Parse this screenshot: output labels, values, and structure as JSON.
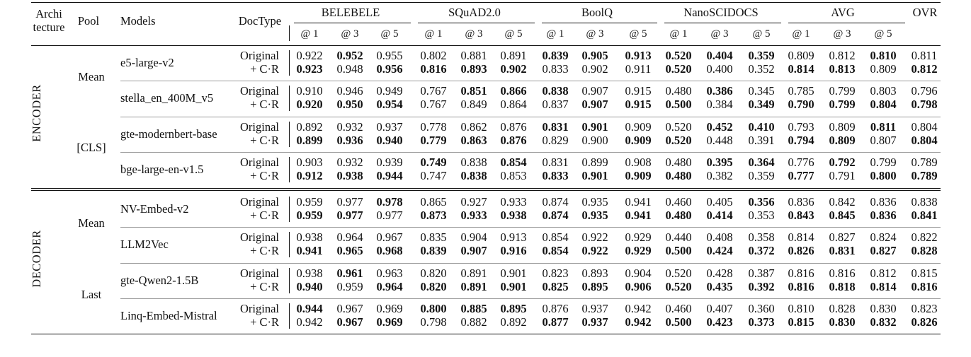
{
  "header": {
    "arch_line1": "Archi",
    "arch_line2": "tecture",
    "pool": "Pool",
    "models": "Models",
    "doctype": "DocType",
    "groups": [
      "BELEBELE",
      "SQuAD2.0",
      "BoolQ",
      "NanoSCIDOCS",
      "AVG"
    ],
    "ovr": "OVR",
    "at_labels": [
      "@ 1",
      "@ 3",
      "@ 5"
    ]
  },
  "doctypes": {
    "original": "Original",
    "cr": "+ C·R"
  },
  "sections": [
    {
      "arch": "ENCODER",
      "pools": [
        {
          "pool": "Mean",
          "models": [
            {
              "name": "e5-large-v2",
              "rows": [
                {
                  "values": [
                    "0.922",
                    "0.952",
                    "0.955",
                    "0.802",
                    "0.881",
                    "0.891",
                    "0.839",
                    "0.905",
                    "0.913",
                    "0.520",
                    "0.404",
                    "0.359",
                    "0.809",
                    "0.812",
                    "0.810",
                    "0.811"
                  ],
                  "bold": [
                    false,
                    true,
                    false,
                    false,
                    false,
                    false,
                    true,
                    true,
                    true,
                    true,
                    true,
                    true,
                    false,
                    false,
                    true,
                    false
                  ]
                },
                {
                  "values": [
                    "0.923",
                    "0.948",
                    "0.956",
                    "0.816",
                    "0.893",
                    "0.902",
                    "0.833",
                    "0.902",
                    "0.911",
                    "0.520",
                    "0.400",
                    "0.352",
                    "0.814",
                    "0.813",
                    "0.809",
                    "0.812"
                  ],
                  "bold": [
                    true,
                    false,
                    true,
                    true,
                    true,
                    true,
                    false,
                    false,
                    false,
                    true,
                    false,
                    false,
                    true,
                    true,
                    false,
                    true
                  ]
                }
              ]
            },
            {
              "name": "stella_en_400M_v5",
              "rows": [
                {
                  "values": [
                    "0.910",
                    "0.946",
                    "0.949",
                    "0.767",
                    "0.851",
                    "0.866",
                    "0.838",
                    "0.907",
                    "0.915",
                    "0.480",
                    "0.386",
                    "0.345",
                    "0.785",
                    "0.799",
                    "0.803",
                    "0.796"
                  ],
                  "bold": [
                    false,
                    false,
                    false,
                    false,
                    true,
                    true,
                    true,
                    false,
                    false,
                    false,
                    true,
                    false,
                    false,
                    false,
                    false,
                    false
                  ]
                },
                {
                  "values": [
                    "0.920",
                    "0.950",
                    "0.954",
                    "0.767",
                    "0.849",
                    "0.864",
                    "0.837",
                    "0.907",
                    "0.915",
                    "0.500",
                    "0.384",
                    "0.349",
                    "0.790",
                    "0.799",
                    "0.804",
                    "0.798"
                  ],
                  "bold": [
                    true,
                    true,
                    true,
                    false,
                    false,
                    false,
                    false,
                    true,
                    true,
                    true,
                    false,
                    true,
                    true,
                    true,
                    true,
                    true
                  ]
                }
              ]
            }
          ]
        },
        {
          "pool": "[CLS]",
          "models": [
            {
              "name": "gte-modernbert-base",
              "rows": [
                {
                  "values": [
                    "0.892",
                    "0.932",
                    "0.937",
                    "0.778",
                    "0.862",
                    "0.876",
                    "0.831",
                    "0.901",
                    "0.909",
                    "0.520",
                    "0.452",
                    "0.410",
                    "0.793",
                    "0.809",
                    "0.811",
                    "0.804"
                  ],
                  "bold": [
                    false,
                    false,
                    false,
                    false,
                    false,
                    false,
                    true,
                    true,
                    false,
                    false,
                    true,
                    true,
                    false,
                    false,
                    true,
                    false
                  ]
                },
                {
                  "values": [
                    "0.899",
                    "0.936",
                    "0.940",
                    "0.779",
                    "0.863",
                    "0.876",
                    "0.829",
                    "0.900",
                    "0.909",
                    "0.520",
                    "0.448",
                    "0.391",
                    "0.794",
                    "0.809",
                    "0.807",
                    "0.804"
                  ],
                  "bold": [
                    true,
                    true,
                    true,
                    true,
                    true,
                    true,
                    false,
                    false,
                    true,
                    true,
                    false,
                    false,
                    true,
                    true,
                    false,
                    true
                  ]
                }
              ]
            },
            {
              "name": "bge-large-en-v1.5",
              "rows": [
                {
                  "values": [
                    "0.903",
                    "0.932",
                    "0.939",
                    "0.749",
                    "0.838",
                    "0.854",
                    "0.831",
                    "0.899",
                    "0.908",
                    "0.480",
                    "0.395",
                    "0.364",
                    "0.776",
                    "0.792",
                    "0.799",
                    "0.789"
                  ],
                  "bold": [
                    false,
                    false,
                    false,
                    true,
                    false,
                    true,
                    false,
                    false,
                    false,
                    false,
                    true,
                    true,
                    false,
                    true,
                    false,
                    false
                  ]
                },
                {
                  "values": [
                    "0.912",
                    "0.938",
                    "0.944",
                    "0.747",
                    "0.838",
                    "0.853",
                    "0.833",
                    "0.901",
                    "0.909",
                    "0.480",
                    "0.382",
                    "0.359",
                    "0.777",
                    "0.791",
                    "0.800",
                    "0.789"
                  ],
                  "bold": [
                    true,
                    true,
                    true,
                    false,
                    true,
                    false,
                    true,
                    true,
                    true,
                    true,
                    false,
                    false,
                    true,
                    false,
                    true,
                    true
                  ]
                }
              ]
            }
          ]
        }
      ]
    },
    {
      "arch": "DECODER",
      "pools": [
        {
          "pool": "Mean",
          "models": [
            {
              "name": "NV-Embed-v2",
              "rows": [
                {
                  "values": [
                    "0.959",
                    "0.977",
                    "0.978",
                    "0.865",
                    "0.927",
                    "0.933",
                    "0.874",
                    "0.935",
                    "0.941",
                    "0.460",
                    "0.405",
                    "0.356",
                    "0.836",
                    "0.842",
                    "0.836",
                    "0.838"
                  ],
                  "bold": [
                    false,
                    false,
                    true,
                    false,
                    false,
                    false,
                    false,
                    false,
                    false,
                    false,
                    false,
                    true,
                    false,
                    false,
                    false,
                    false
                  ]
                },
                {
                  "values": [
                    "0.959",
                    "0.977",
                    "0.977",
                    "0.873",
                    "0.933",
                    "0.938",
                    "0.874",
                    "0.935",
                    "0.941",
                    "0.480",
                    "0.414",
                    "0.353",
                    "0.843",
                    "0.845",
                    "0.836",
                    "0.841"
                  ],
                  "bold": [
                    true,
                    true,
                    false,
                    true,
                    true,
                    true,
                    true,
                    true,
                    true,
                    true,
                    true,
                    false,
                    true,
                    true,
                    true,
                    true
                  ]
                }
              ]
            },
            {
              "name": "LLM2Vec",
              "rows": [
                {
                  "values": [
                    "0.938",
                    "0.964",
                    "0.967",
                    "0.835",
                    "0.904",
                    "0.913",
                    "0.854",
                    "0.922",
                    "0.929",
                    "0.440",
                    "0.408",
                    "0.358",
                    "0.814",
                    "0.827",
                    "0.824",
                    "0.822"
                  ],
                  "bold": [
                    false,
                    false,
                    false,
                    false,
                    false,
                    false,
                    false,
                    false,
                    false,
                    false,
                    false,
                    false,
                    false,
                    false,
                    false,
                    false
                  ]
                },
                {
                  "values": [
                    "0.941",
                    "0.965",
                    "0.968",
                    "0.839",
                    "0.907",
                    "0.916",
                    "0.854",
                    "0.922",
                    "0.929",
                    "0.500",
                    "0.424",
                    "0.372",
                    "0.826",
                    "0.831",
                    "0.827",
                    "0.828"
                  ],
                  "bold": [
                    true,
                    true,
                    true,
                    true,
                    true,
                    true,
                    true,
                    true,
                    true,
                    true,
                    true,
                    true,
                    true,
                    true,
                    true,
                    true
                  ]
                }
              ]
            }
          ]
        },
        {
          "pool": "Last",
          "models": [
            {
              "name": "gte-Qwen2-1.5B",
              "rows": [
                {
                  "values": [
                    "0.938",
                    "0.961",
                    "0.963",
                    "0.820",
                    "0.891",
                    "0.901",
                    "0.823",
                    "0.893",
                    "0.904",
                    "0.520",
                    "0.428",
                    "0.387",
                    "0.816",
                    "0.816",
                    "0.812",
                    "0.815"
                  ],
                  "bold": [
                    false,
                    true,
                    false,
                    false,
                    false,
                    false,
                    false,
                    false,
                    false,
                    false,
                    false,
                    false,
                    false,
                    false,
                    false,
                    false
                  ]
                },
                {
                  "values": [
                    "0.940",
                    "0.959",
                    "0.964",
                    "0.820",
                    "0.891",
                    "0.901",
                    "0.825",
                    "0.895",
                    "0.906",
                    "0.520",
                    "0.435",
                    "0.392",
                    "0.816",
                    "0.818",
                    "0.814",
                    "0.816"
                  ],
                  "bold": [
                    true,
                    false,
                    true,
                    true,
                    true,
                    true,
                    true,
                    true,
                    true,
                    true,
                    true,
                    true,
                    true,
                    true,
                    true,
                    true
                  ]
                }
              ]
            },
            {
              "name": "Linq-Embed-Mistral",
              "rows": [
                {
                  "values": [
                    "0.944",
                    "0.967",
                    "0.969",
                    "0.800",
                    "0.885",
                    "0.895",
                    "0.876",
                    "0.937",
                    "0.942",
                    "0.460",
                    "0.407",
                    "0.360",
                    "0.810",
                    "0.828",
                    "0.830",
                    "0.823"
                  ],
                  "bold": [
                    true,
                    false,
                    false,
                    true,
                    true,
                    true,
                    false,
                    false,
                    false,
                    false,
                    false,
                    false,
                    false,
                    false,
                    false,
                    false
                  ]
                },
                {
                  "values": [
                    "0.942",
                    "0.967",
                    "0.969",
                    "0.798",
                    "0.882",
                    "0.892",
                    "0.877",
                    "0.937",
                    "0.942",
                    "0.500",
                    "0.423",
                    "0.373",
                    "0.815",
                    "0.830",
                    "0.832",
                    "0.826"
                  ],
                  "bold": [
                    false,
                    true,
                    true,
                    false,
                    false,
                    false,
                    true,
                    true,
                    true,
                    true,
                    true,
                    true,
                    true,
                    true,
                    true,
                    true
                  ]
                }
              ]
            }
          ]
        }
      ]
    }
  ]
}
